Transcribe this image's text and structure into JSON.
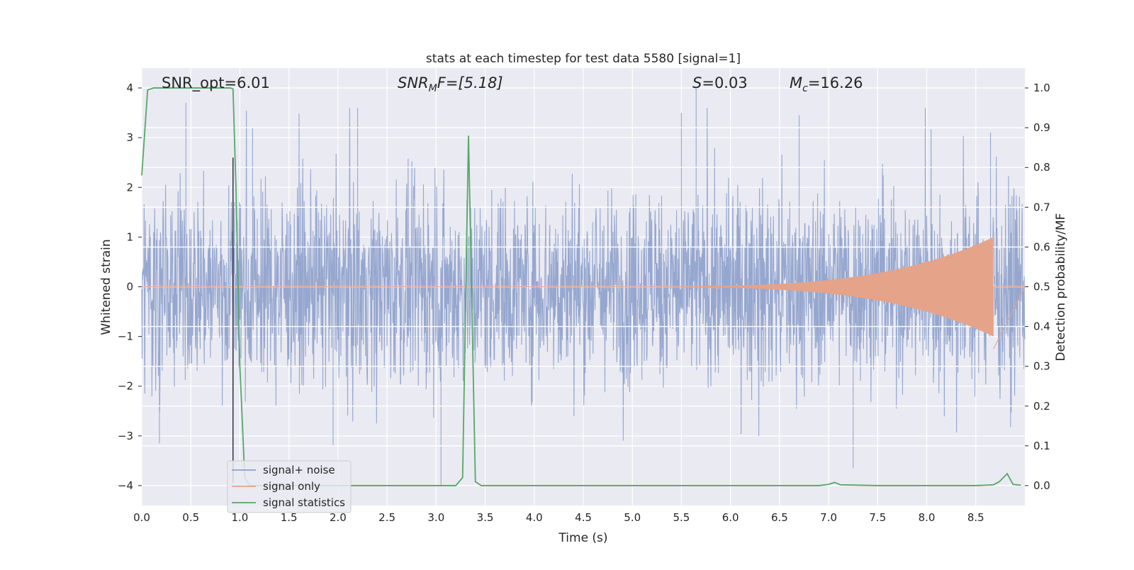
{
  "chart_data": {
    "type": "line",
    "title": "stats at each timestep for test data 5580 [signal=1]",
    "xlabel": "Time (s)",
    "ylabel_left": "Whitened strain",
    "ylabel_right": "Detection probability/MF",
    "xlim": [
      0.0,
      9.0
    ],
    "ylim_left": [
      -4.4,
      4.4
    ],
    "ylim_right": [
      -0.05,
      1.05
    ],
    "x_ticks": [
      "0.0",
      "0.5",
      "1.0",
      "1.5",
      "2.0",
      "2.5",
      "3.0",
      "3.5",
      "4.0",
      "4.5",
      "5.0",
      "5.5",
      "6.0",
      "6.5",
      "7.0",
      "7.5",
      "8.0",
      "8.5"
    ],
    "y_left_ticks": [
      "−4",
      "−3",
      "−2",
      "−1",
      "0",
      "1",
      "2",
      "3",
      "4"
    ],
    "y_right_ticks": [
      "0.0",
      "0.1",
      "0.2",
      "0.3",
      "0.4",
      "0.5",
      "0.6",
      "0.7",
      "0.8",
      "0.9",
      "1.0"
    ],
    "grid": true,
    "legend_position": "lower-left",
    "annotations": {
      "snr_opt": "SNR_opt=6.01",
      "snr_mf_base": "SNR",
      "snr_mf_sub": "M",
      "snr_mf_rest": "F=[5.18]",
      "s_var": "S",
      "s_rest": "=0.03",
      "mc_base": "M",
      "mc_sub": "c",
      "mc_rest": "=16.26"
    },
    "vline_x": 0.93,
    "series": [
      {
        "name": "signal+ noise",
        "color": "#8da0cb",
        "axis": "left",
        "noise_amplitude_band": 1.6,
        "peaks": [
          [
            0.45,
            3.7
          ],
          [
            1.13,
            3.2
          ],
          [
            2.2,
            3.6
          ],
          [
            5.5,
            3.5
          ],
          [
            5.65,
            4.0
          ],
          [
            6.7,
            3.45
          ],
          [
            8.65,
            3.1
          ],
          [
            3.05,
            -4.0
          ],
          [
            7.25,
            -3.65
          ],
          [
            1.95,
            -3.2
          ],
          [
            0.18,
            -3.15
          ]
        ]
      },
      {
        "name": "signal only",
        "color": "#e5a389",
        "axis": "left",
        "chirp_start": 4.4,
        "chirp_end": 8.68,
        "peak_amplitude": 1.0,
        "final_value": -1.25
      },
      {
        "name": "signal statistics",
        "color": "#55a868",
        "axis": "right",
        "x": [
          0.0,
          0.06,
          0.12,
          0.2,
          0.3,
          0.4,
          0.5,
          0.6,
          0.7,
          0.8,
          0.9,
          0.93,
          0.96,
          1.0,
          1.05,
          1.1,
          1.2,
          2.0,
          2.5,
          3.0,
          3.2,
          3.27,
          3.33,
          3.4,
          3.46,
          3.6,
          4.0,
          5.0,
          6.0,
          6.9,
          7.0,
          7.06,
          7.12,
          7.5,
          8.0,
          8.5,
          8.68,
          8.74,
          8.82,
          8.88,
          8.96
        ],
        "y": [
          0.78,
          0.995,
          1.0,
          1.0,
          1.0,
          1.0,
          1.0,
          1.0,
          1.0,
          1.0,
          1.0,
          0.998,
          0.75,
          0.3,
          0.02,
          0.0,
          0.0,
          0.0,
          0.0,
          0.0,
          0.0,
          0.02,
          0.88,
          0.01,
          0.0,
          0.0,
          0.0,
          0.0,
          0.0,
          0.0,
          0.003,
          0.008,
          0.002,
          0.0,
          0.0,
          0.0,
          0.002,
          0.01,
          0.03,
          0.003,
          0.001
        ]
      }
    ]
  }
}
